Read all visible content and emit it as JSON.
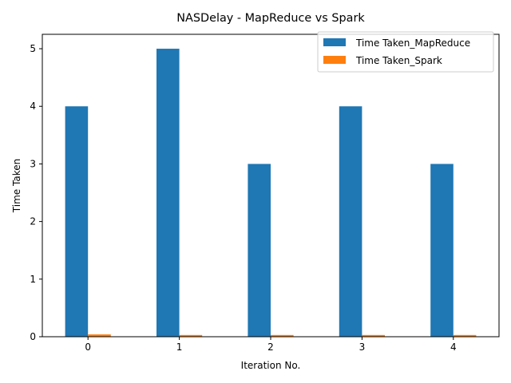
{
  "chart_data": {
    "type": "bar",
    "title": "NASDelay - MapReduce vs Spark",
    "xlabel": "Iteration No.",
    "ylabel": "Time Taken",
    "categories": [
      "0",
      "1",
      "2",
      "3",
      "4"
    ],
    "series": [
      {
        "name": "Time Taken_MapReduce",
        "values": [
          4,
          5,
          3,
          4,
          3
        ],
        "color": "#1f77b4"
      },
      {
        "name": "Time Taken_Spark",
        "values": [
          0.04,
          0.03,
          0.03,
          0.03,
          0.03
        ],
        "color": "#ff7f0e"
      }
    ],
    "ylim": [
      0,
      5.25
    ],
    "yticks": [
      0,
      1,
      2,
      3,
      4,
      5
    ],
    "grid": false,
    "legend_position": "top-right"
  }
}
